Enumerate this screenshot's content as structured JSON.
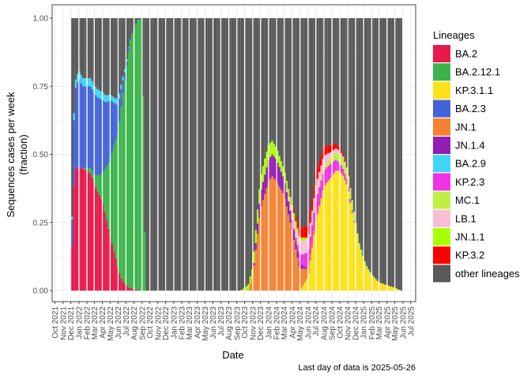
{
  "chart_data": {
    "type": "area",
    "stacking": "fill",
    "xlabel": "Date",
    "ylabel_lines": [
      "Sequences cases per week",
      "(fraction)"
    ],
    "y_ticks": [
      "0.00",
      "0.25",
      "0.50",
      "0.75",
      "1.00"
    ],
    "ylim": [
      0,
      1
    ],
    "xlim": [
      "2021-09-20",
      "2025-07-20"
    ],
    "x_ticks": [
      "Oct 2021",
      "Nov 2021",
      "Dec 2021",
      "Jan 2022",
      "Feb 2022",
      "Mar 2022",
      "Apr 2022",
      "May 2022",
      "Jun 2022",
      "Jul 2022",
      "Aug 2022",
      "Sep 2022",
      "Oct 2022",
      "Nov 2022",
      "Dec 2022",
      "Jan 2023",
      "Feb 2023",
      "Mar 2023",
      "Apr 2023",
      "May 2023",
      "Jun 2023",
      "Jul 2023",
      "Aug 2023",
      "Sep 2023",
      "Oct 2023",
      "Nov 2023",
      "Dec 2023",
      "Jan 2024",
      "Feb 2024",
      "Mar 2024",
      "Apr 2024",
      "May 2024",
      "Jun 2024",
      "Jul 2024",
      "Aug 2024",
      "Sep 2024",
      "Oct 2024",
      "Nov 2024",
      "Dec 2024",
      "Jan 2025",
      "Feb 2025",
      "Mar 2025",
      "Apr 2025",
      "May 2025",
      "Jun 2025",
      "Jul 2025"
    ],
    "grid": true,
    "legend_position": "right",
    "legend_title": "Lineages",
    "caption": "Last day of data is 2025-05-26",
    "series": [
      {
        "name": "BA.2",
        "color": "#E8194B",
        "points": [
          [
            "2021-12-01",
            0
          ],
          [
            "2021-12-15",
            0.45
          ],
          [
            "2022-01-15",
            0.45
          ],
          [
            "2022-02-15",
            0.43
          ],
          [
            "2022-03-15",
            0.36
          ],
          [
            "2022-04-01",
            0.33
          ],
          [
            "2022-04-15",
            0.27
          ],
          [
            "2022-05-01",
            0.2
          ],
          [
            "2022-05-15",
            0.15
          ],
          [
            "2022-06-01",
            0.08
          ],
          [
            "2022-06-15",
            0.04
          ],
          [
            "2022-07-01",
            0.02
          ],
          [
            "2022-07-15",
            0.01
          ],
          [
            "2022-08-01",
            0.005
          ],
          [
            "2022-09-01",
            0
          ]
        ]
      },
      {
        "name": "BA.2.12.1",
        "color": "#3CB44B",
        "points": [
          [
            "2021-12-01",
            0
          ],
          [
            "2022-01-15",
            0
          ],
          [
            "2022-02-01",
            0.01
          ],
          [
            "2022-03-01",
            0.03
          ],
          [
            "2022-04-01",
            0.1
          ],
          [
            "2022-04-15",
            0.18
          ],
          [
            "2022-05-01",
            0.28
          ],
          [
            "2022-05-15",
            0.38
          ],
          [
            "2022-06-01",
            0.5
          ],
          [
            "2022-06-15",
            0.65
          ],
          [
            "2022-07-01",
            0.78
          ],
          [
            "2022-07-15",
            0.9
          ],
          [
            "2022-08-01",
            0.96
          ],
          [
            "2022-08-15",
            0.99
          ],
          [
            "2022-09-01",
            1
          ],
          [
            "2022-09-15",
            0
          ]
        ]
      },
      {
        "name": "KP.3.1.1",
        "color": "#FFE119",
        "points": [
          [
            "2024-05-01",
            0
          ],
          [
            "2024-06-01",
            0.05
          ],
          [
            "2024-07-01",
            0.25
          ],
          [
            "2024-08-01",
            0.38
          ],
          [
            "2024-08-15",
            0.4
          ],
          [
            "2024-09-01",
            0.42
          ],
          [
            "2024-09-15",
            0.44
          ],
          [
            "2024-10-01",
            0.44
          ],
          [
            "2024-10-15",
            0.42
          ],
          [
            "2024-11-01",
            0.38
          ],
          [
            "2024-11-15",
            0.3
          ],
          [
            "2024-12-01",
            0.22
          ],
          [
            "2024-12-15",
            0.15
          ],
          [
            "2025-01-01",
            0.1
          ],
          [
            "2025-01-15",
            0.07
          ],
          [
            "2025-02-01",
            0.05
          ],
          [
            "2025-03-01",
            0.03
          ],
          [
            "2025-04-01",
            0.02
          ],
          [
            "2025-05-01",
            0.01
          ],
          [
            "2025-05-26",
            0
          ]
        ]
      },
      {
        "name": "BA.2.3",
        "color": "#4363D8",
        "points": [
          [
            "2021-12-01",
            0
          ],
          [
            "2021-12-15",
            0.28
          ],
          [
            "2022-01-01",
            0.33
          ],
          [
            "2022-01-15",
            0.3
          ],
          [
            "2022-02-01",
            0.3
          ],
          [
            "2022-02-15",
            0.3
          ],
          [
            "2022-03-01",
            0.3
          ],
          [
            "2022-04-01",
            0.27
          ],
          [
            "2022-04-15",
            0.24
          ],
          [
            "2022-05-01",
            0.22
          ],
          [
            "2022-05-15",
            0.16
          ],
          [
            "2022-06-01",
            0.1
          ],
          [
            "2022-06-15",
            0.06
          ],
          [
            "2022-07-01",
            0.02
          ],
          [
            "2022-07-15",
            0.01
          ],
          [
            "2022-08-01",
            0
          ]
        ]
      },
      {
        "name": "JN.1",
        "color": "#F58231",
        "points": [
          [
            "2023-10-15",
            0
          ],
          [
            "2023-11-01",
            0.05
          ],
          [
            "2023-12-01",
            0.3
          ],
          [
            "2024-01-01",
            0.4
          ],
          [
            "2024-01-15",
            0.42
          ],
          [
            "2024-02-01",
            0.4
          ],
          [
            "2024-03-01",
            0.35
          ],
          [
            "2024-04-01",
            0.22
          ],
          [
            "2024-04-15",
            0.15
          ],
          [
            "2024-05-01",
            0.08
          ],
          [
            "2024-06-01",
            0.03
          ],
          [
            "2024-07-01",
            0.01
          ],
          [
            "2024-08-01",
            0
          ]
        ]
      },
      {
        "name": "JN.1.4",
        "color": "#911EB4",
        "points": [
          [
            "2023-11-01",
            0
          ],
          [
            "2023-12-01",
            0.06
          ],
          [
            "2024-01-01",
            0.08
          ],
          [
            "2024-02-01",
            0.08
          ],
          [
            "2024-03-01",
            0.06
          ],
          [
            "2024-04-01",
            0.04
          ],
          [
            "2024-05-01",
            0.02
          ],
          [
            "2024-06-01",
            0
          ]
        ]
      },
      {
        "name": "BA.2.9",
        "color": "#42D4F4",
        "points": [
          [
            "2021-12-01",
            0
          ],
          [
            "2021-12-15",
            0.03
          ],
          [
            "2022-01-15",
            0.03
          ],
          [
            "2022-02-15",
            0.03
          ],
          [
            "2022-04-01",
            0.03
          ],
          [
            "2022-05-01",
            0.02
          ],
          [
            "2022-06-01",
            0.02
          ],
          [
            "2022-07-01",
            0.01
          ],
          [
            "2022-07-15",
            0
          ]
        ]
      },
      {
        "name": "KP.2.3",
        "color": "#F032E6",
        "points": [
          [
            "2024-04-01",
            0
          ],
          [
            "2024-05-01",
            0.03
          ],
          [
            "2024-06-01",
            0.06
          ],
          [
            "2024-07-01",
            0.07
          ],
          [
            "2024-08-01",
            0.06
          ],
          [
            "2024-09-01",
            0.05
          ],
          [
            "2024-10-01",
            0.03
          ],
          [
            "2024-11-01",
            0.02
          ],
          [
            "2024-12-01",
            0
          ]
        ]
      },
      {
        "name": "MC.1",
        "color": "#BFEF45",
        "points": [
          [
            "2024-06-15",
            0
          ],
          [
            "2024-07-15",
            0.01
          ],
          [
            "2024-09-01",
            0.02
          ],
          [
            "2024-10-15",
            0.04
          ],
          [
            "2024-11-15",
            0.04
          ],
          [
            "2025-01-01",
            0.02
          ],
          [
            "2025-02-01",
            0.01
          ],
          [
            "2025-03-01",
            0
          ]
        ]
      },
      {
        "name": "LB.1",
        "color": "#FABED4",
        "points": [
          [
            "2024-03-01",
            0
          ],
          [
            "2024-04-01",
            0.03
          ],
          [
            "2024-05-01",
            0.05
          ],
          [
            "2024-06-01",
            0.05
          ],
          [
            "2024-07-01",
            0.05
          ],
          [
            "2024-08-01",
            0.04
          ],
          [
            "2024-09-01",
            0.02
          ],
          [
            "2024-10-01",
            0.01
          ],
          [
            "2024-11-01",
            0
          ]
        ]
      },
      {
        "name": "JN.1.1",
        "color": "#A9FF00",
        "points": [
          [
            "2023-09-15",
            0
          ],
          [
            "2023-10-15",
            0.02
          ],
          [
            "2023-11-15",
            0.05
          ],
          [
            "2023-12-15",
            0.06
          ],
          [
            "2024-01-15",
            0.05
          ],
          [
            "2024-02-15",
            0.04
          ],
          [
            "2024-03-15",
            0.03
          ],
          [
            "2024-04-15",
            0.02
          ],
          [
            "2024-05-15",
            0.01
          ],
          [
            "2024-06-15",
            0
          ]
        ]
      },
      {
        "name": "KP.3.2",
        "color": "#FF0000",
        "points": [
          [
            "2024-03-15",
            0
          ],
          [
            "2024-04-15",
            0.02
          ],
          [
            "2024-05-15",
            0.04
          ],
          [
            "2024-06-15",
            0.05
          ],
          [
            "2024-07-15",
            0.04
          ],
          [
            "2024-08-15",
            0.03
          ],
          [
            "2024-09-15",
            0.02
          ],
          [
            "2024-10-15",
            0.01
          ],
          [
            "2024-11-15",
            0
          ]
        ]
      },
      {
        "name": "other lineages",
        "color": "#595959",
        "remainder": true
      }
    ]
  }
}
